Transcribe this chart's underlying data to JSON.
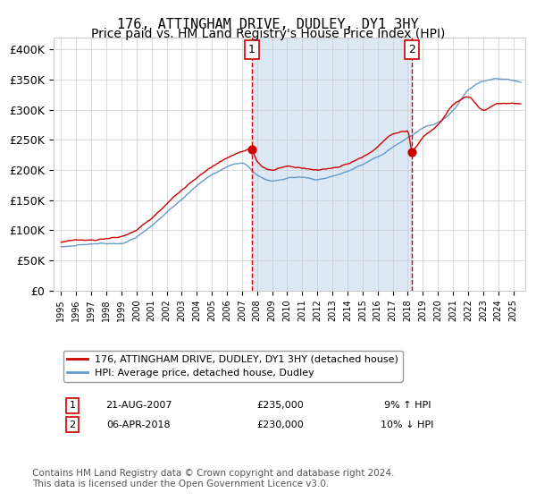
{
  "title": "176, ATTINGHAM DRIVE, DUDLEY, DY1 3HY",
  "subtitle": "Price paid vs. HM Land Registry's House Price Index (HPI)",
  "legend_line1": "176, ATTINGHAM DRIVE, DUDLEY, DY1 3HY (detached house)",
  "legend_line2": "HPI: Average price, detached house, Dudley",
  "annotation1_label": "1",
  "annotation1_date": "21-AUG-2007",
  "annotation1_price": "£235,000",
  "annotation1_hpi": "9% ↑ HPI",
  "annotation1_year": 2007.65,
  "annotation1_value": 235000,
  "annotation2_label": "2",
  "annotation2_date": "06-APR-2018",
  "annotation2_price": "£230,000",
  "annotation2_hpi": "10% ↓ HPI",
  "annotation2_year": 2018.27,
  "annotation2_value": 230000,
  "footer": "Contains HM Land Registry data © Crown copyright and database right 2024.\nThis data is licensed under the Open Government Licence v3.0.",
  "ylim": [
    0,
    420000
  ],
  "yticks": [
    0,
    50000,
    100000,
    150000,
    200000,
    250000,
    300000,
    350000,
    400000
  ],
  "ytick_labels": [
    "£0",
    "£50K",
    "£100K",
    "£150K",
    "£200K",
    "£250K",
    "£300K",
    "£350K",
    "£400K"
  ],
  "red_color": "#cc0000",
  "blue_color": "#6699cc",
  "shade_color": "#dce9f5",
  "grid_color": "#cccccc",
  "bg_color": "#ffffff",
  "dashed_color": "#cc0000",
  "title_fontsize": 11,
  "subtitle_fontsize": 10,
  "axis_fontsize": 9,
  "footer_fontsize": 7.5
}
